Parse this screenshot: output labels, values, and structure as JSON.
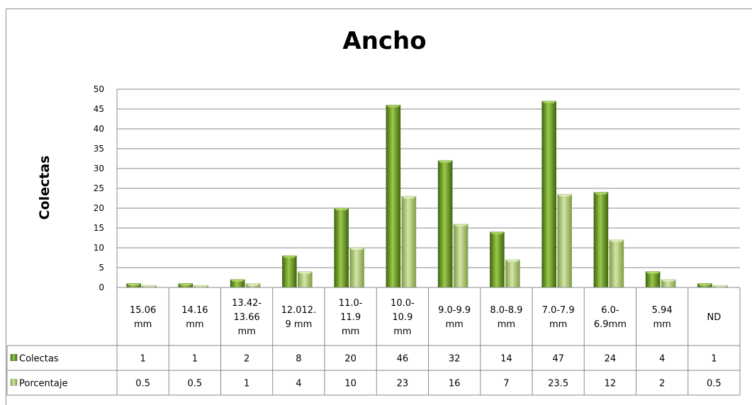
{
  "chart_data": {
    "type": "bar",
    "title": "Ancho",
    "xlabel": "",
    "ylabel": "Colectas",
    "ylim": [
      0,
      50
    ],
    "yticks": [
      0,
      5,
      10,
      15,
      20,
      25,
      30,
      35,
      40,
      45,
      50
    ],
    "grid": true,
    "legend": "data-table",
    "categories": [
      [
        "15.06",
        "mm"
      ],
      [
        "14.16",
        "mm"
      ],
      [
        "13.42-",
        "13.66",
        "mm"
      ],
      [
        "12.012.",
        "9 mm"
      ],
      [
        "11.0-",
        "11.9",
        "mm"
      ],
      [
        "10.0-",
        "10.9",
        "mm"
      ],
      [
        "9.0-9.9",
        "mm"
      ],
      [
        "8.0-8.9",
        "mm"
      ],
      [
        "7.0-7.9",
        "mm"
      ],
      [
        "6.0-",
        "6.9mm"
      ],
      [
        "5.94",
        "mm"
      ],
      [
        "ND"
      ]
    ],
    "series": [
      {
        "name": "Colectas",
        "color": "#5e8a1e",
        "values": [
          1,
          1,
          2,
          8,
          20,
          46,
          32,
          14,
          47,
          24,
          4,
          1
        ],
        "labels": [
          "1",
          "1",
          "2",
          "8",
          "20",
          "46",
          "32",
          "14",
          "47",
          "24",
          "4",
          "1"
        ]
      },
      {
        "name": "Porcentaje",
        "color": "#a9c46e",
        "values": [
          0.5,
          0.5,
          1,
          4,
          10,
          23,
          16,
          7,
          23.5,
          12,
          2,
          0.5
        ],
        "labels": [
          "0.5",
          "0.5",
          "1",
          "4",
          "10",
          "23",
          "16",
          "7",
          "23.5",
          "12",
          "2",
          "0.5"
        ]
      }
    ]
  }
}
